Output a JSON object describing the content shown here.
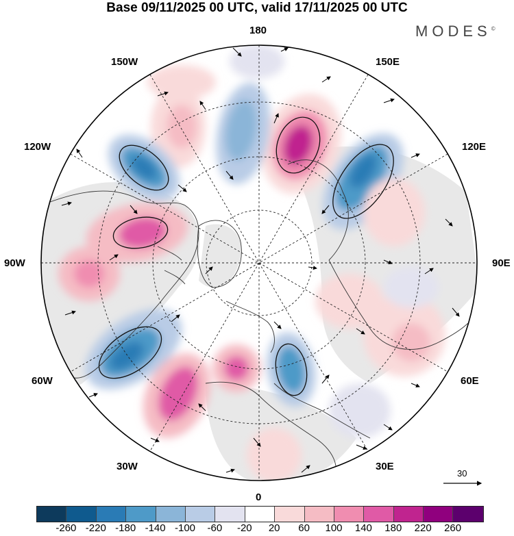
{
  "header": {
    "title": "Base 09/11/2025 00 UTC, valid 17/11/2025 00 UTC",
    "brand": "MODES",
    "brand_mark": "©"
  },
  "map": {
    "projection": "north-polar-stereographic",
    "longitude_labels": {
      "top": "180",
      "bottom": "0",
      "left": "90W",
      "right": "90E",
      "upper_left_1": "150W",
      "upper_left_2": "120W",
      "lower_left_1": "60W",
      "lower_left_2": "30W",
      "upper_right_1": "150E",
      "upper_right_2": "120E",
      "lower_right_1": "60E",
      "lower_right_2": "30E"
    },
    "wind_reference_label": "30",
    "anomaly_centers": [
      {
        "name": "north-atlantic-positive",
        "sign": "positive"
      },
      {
        "name": "labrador-negative",
        "sign": "negative"
      },
      {
        "name": "europe-negative",
        "sign": "negative"
      },
      {
        "name": "iceland-positive",
        "sign": "positive"
      },
      {
        "name": "canada-positive",
        "sign": "positive"
      },
      {
        "name": "alaska-negative",
        "sign": "negative"
      },
      {
        "name": "bering-negative",
        "sign": "negative"
      },
      {
        "name": "kamchatka-positive",
        "sign": "positive"
      },
      {
        "name": "siberia-negative",
        "sign": "negative"
      }
    ]
  },
  "colorbar": {
    "colors": [
      "#0d3a5c",
      "#0f5a8e",
      "#2a7bb5",
      "#4e9ac8",
      "#8bb5d8",
      "#b9cce6",
      "#e3e3f0",
      "#ffffff",
      "#f9dada",
      "#f5bcc4",
      "#f08db0",
      "#e05aa6",
      "#c0248f",
      "#90007e",
      "#5c006d"
    ],
    "tick_labels": [
      "-260",
      "-220",
      "-180",
      "-140",
      "-100",
      "-60",
      "-20",
      "20",
      "60",
      "100",
      "140",
      "180",
      "220",
      "260"
    ]
  }
}
